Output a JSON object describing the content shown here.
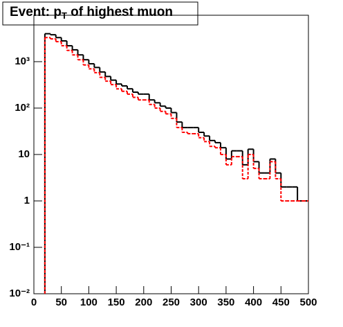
{
  "chart_data": {
    "type": "histogram",
    "title": [
      "Event: p",
      "T",
      " of highest muon"
    ],
    "logy": true,
    "bins": [
      20,
      30,
      40,
      50,
      60,
      70,
      80,
      90,
      100,
      110,
      120,
      130,
      140,
      150,
      160,
      170,
      180,
      190,
      200,
      210,
      220,
      230,
      240,
      250,
      260,
      270,
      280,
      290,
      300,
      310,
      320,
      330,
      340,
      350,
      360,
      370,
      380,
      390,
      400,
      410,
      420,
      430,
      440,
      450,
      460,
      470,
      480,
      490,
      500
    ],
    "series": [
      {
        "color": "#000000",
        "dashed": false,
        "values": [
          4000,
          3800,
          3300,
          2800,
          2200,
          1800,
          1400,
          1100,
          900,
          750,
          600,
          480,
          400,
          330,
          300,
          260,
          220,
          200,
          200,
          150,
          130,
          110,
          100,
          80,
          50,
          38,
          38,
          38,
          30,
          25,
          20,
          18,
          14,
          8,
          12,
          12,
          6,
          13,
          7,
          4,
          4,
          8,
          4,
          2,
          2,
          2,
          1,
          1
        ]
      },
      {
        "color": "#ff0000",
        "dashed": true,
        "values": [
          3300,
          3100,
          2700,
          2200,
          1750,
          1400,
          1100,
          850,
          700,
          580,
          460,
          380,
          320,
          260,
          230,
          200,
          170,
          150,
          150,
          120,
          100,
          85,
          75,
          60,
          38,
          30,
          28,
          28,
          23,
          19,
          15,
          14,
          10,
          6,
          9,
          9,
          3,
          10,
          5,
          3,
          3,
          7,
          3,
          1,
          1,
          1,
          1,
          1
        ]
      }
    ],
    "xlim": [
      0,
      500
    ],
    "xticks": [
      0,
      50,
      100,
      150,
      200,
      250,
      300,
      350,
      400,
      450,
      500
    ],
    "ylim": [
      0.01,
      10000
    ],
    "yticks": [
      {
        "value": 0.01,
        "label": "10⁻²"
      },
      {
        "value": 0.1,
        "label": "10⁻¹"
      },
      1,
      10,
      {
        "value": 100,
        "label": "10²"
      },
      {
        "value": 1000,
        "label": "10³"
      }
    ]
  }
}
